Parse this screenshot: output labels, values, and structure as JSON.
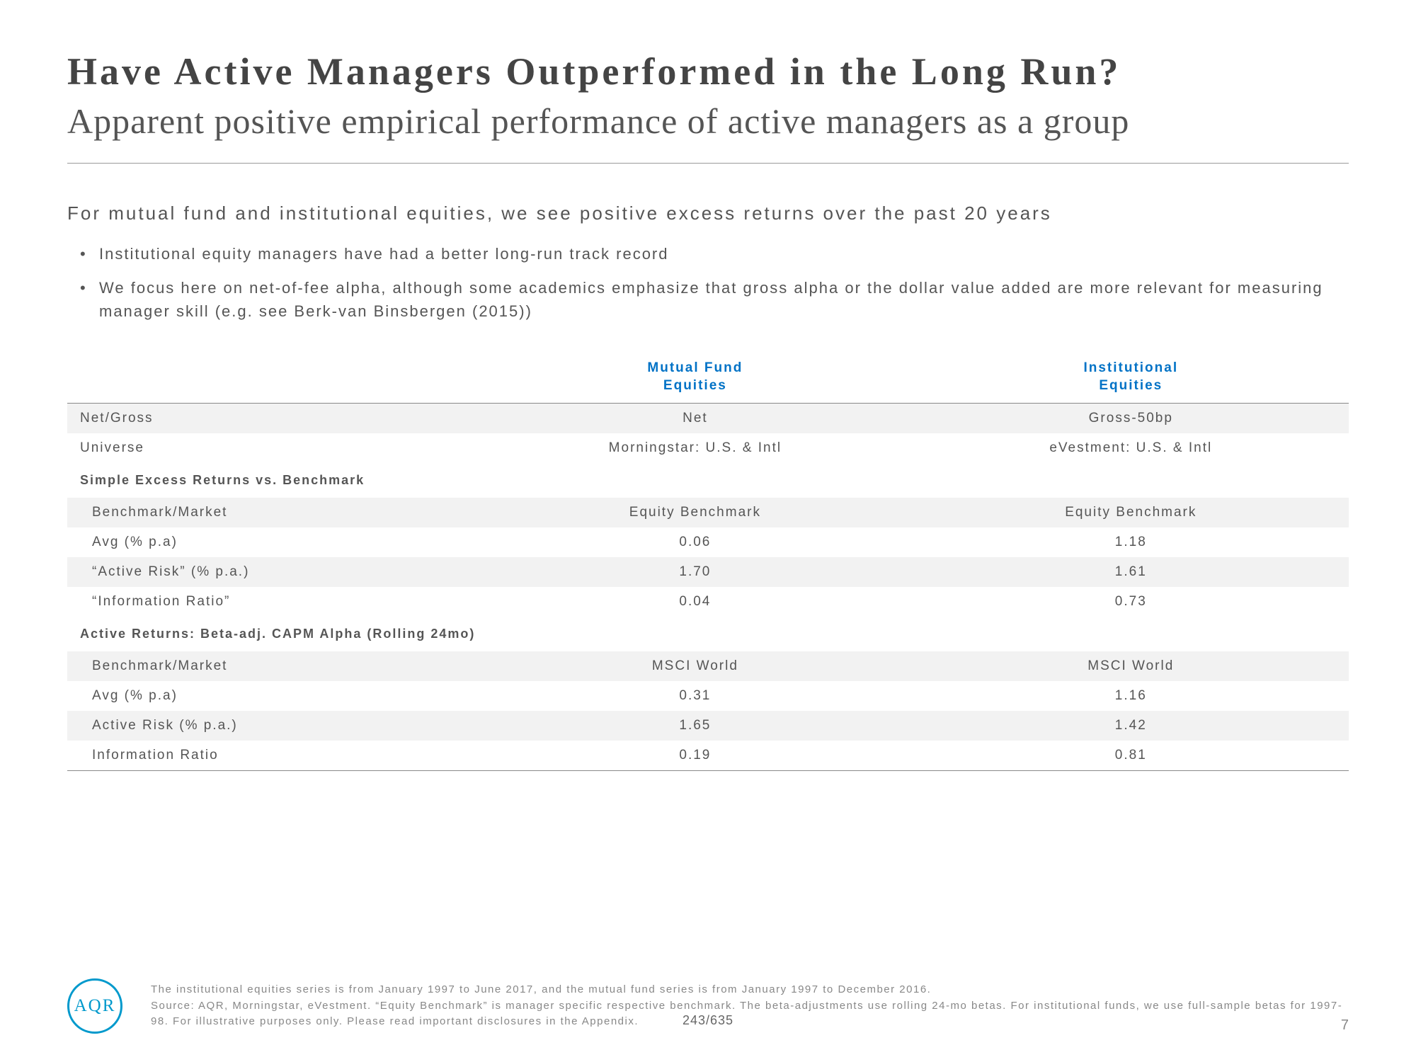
{
  "title": "Have Active Managers Outperformed in the Long Run?",
  "subtitle": "Apparent positive empirical performance of active managers as a group",
  "intro": "For mutual fund and institutional equities, we see positive excess returns over the past 20 years",
  "bullets": [
    "Institutional equity managers have had a better long-run track record",
    "We focus here on net-of-fee alpha, although some academics emphasize that gross alpha or the dollar value added are more relevant for measuring manager skill (e.g. see Berk-van Binsbergen (2015))"
  ],
  "table": {
    "headers": {
      "c1": "Mutual Fund\nEquities",
      "c2": "Institutional\nEquities"
    },
    "rows": [
      {
        "type": "data",
        "shaded": true,
        "label": "Net/Gross",
        "c1": "Net",
        "c2": "Gross-50bp"
      },
      {
        "type": "data",
        "shaded": false,
        "label": "Universe",
        "c1": "Morningstar: U.S. & Intl",
        "c2": "eVestment: U.S. & Intl"
      },
      {
        "type": "section",
        "label": "Simple Excess Returns vs. Benchmark"
      },
      {
        "type": "data",
        "shaded": true,
        "indent": true,
        "label": "Benchmark/Market",
        "c1": "Equity Benchmark",
        "c2": "Equity Benchmark"
      },
      {
        "type": "data",
        "shaded": false,
        "indent": true,
        "label": "Avg (% p.a)",
        "c1": "0.06",
        "c2": "1.18"
      },
      {
        "type": "data",
        "shaded": true,
        "indent": true,
        "label": "“Active Risk” (% p.a.)",
        "c1": "1.70",
        "c2": "1.61"
      },
      {
        "type": "data",
        "shaded": false,
        "indent": true,
        "label": "“Information Ratio”",
        "c1": "0.04",
        "c2": "0.73"
      },
      {
        "type": "section",
        "label": "Active Returns: Beta-adj. CAPM Alpha (Rolling 24mo)"
      },
      {
        "type": "data",
        "shaded": true,
        "indent": true,
        "label": "Benchmark/Market",
        "c1": "MSCI World",
        "c2": "MSCI World"
      },
      {
        "type": "data",
        "shaded": false,
        "indent": true,
        "label": "Avg (% p.a)",
        "c1": "0.31",
        "c2": "1.16"
      },
      {
        "type": "data",
        "shaded": true,
        "indent": true,
        "label": "Active Risk (% p.a.)",
        "c1": "1.65",
        "c2": "1.42"
      },
      {
        "type": "data",
        "shaded": false,
        "indent": true,
        "last": true,
        "label": "Information Ratio",
        "c1": "0.19",
        "c2": "0.81"
      }
    ]
  },
  "logo": "AQR",
  "footnotes": [
    "The institutional equities series is from January 1997 to June 2017, and the mutual fund series is from January 1997 to December 2016.",
    "Source: AQR, Morningstar, eVestment. “Equity Benchmark” is manager specific respective benchmark. The beta-adjustments use rolling 24-mo betas. For institutional funds, we use full-sample betas for 1997-98. For illustrative purposes only. Please read important disclosures in the Appendix."
  ],
  "midnum": "243/635",
  "pagenum": "7"
}
